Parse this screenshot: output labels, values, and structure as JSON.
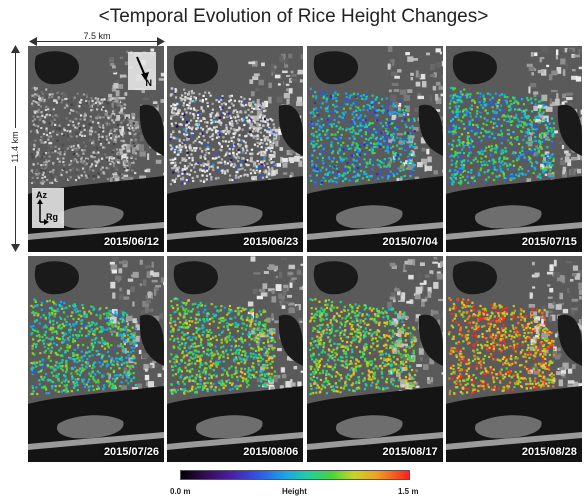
{
  "title": "<Temporal Evolution of Rice Height Changes>",
  "dimension_horizontal": "7.5 km",
  "dimension_vertical": "11.4 km",
  "north_label": "N",
  "az_label": "Az",
  "rg_label": "Rg",
  "panels": [
    {
      "date": "2015/06/12",
      "level": 0.0
    },
    {
      "date": "2015/06/23",
      "level": 0.08
    },
    {
      "date": "2015/07/04",
      "level": 0.35
    },
    {
      "date": "2015/07/15",
      "level": 0.42
    },
    {
      "date": "2015/07/26",
      "level": 0.47
    },
    {
      "date": "2015/08/06",
      "level": 0.56
    },
    {
      "date": "2015/08/17",
      "level": 0.6
    },
    {
      "date": "2015/08/28",
      "level": 0.82
    }
  ],
  "colorbar": {
    "min_label": "0.0 m",
    "mid_label": "Height",
    "max_label": "1.5 m"
  }
}
